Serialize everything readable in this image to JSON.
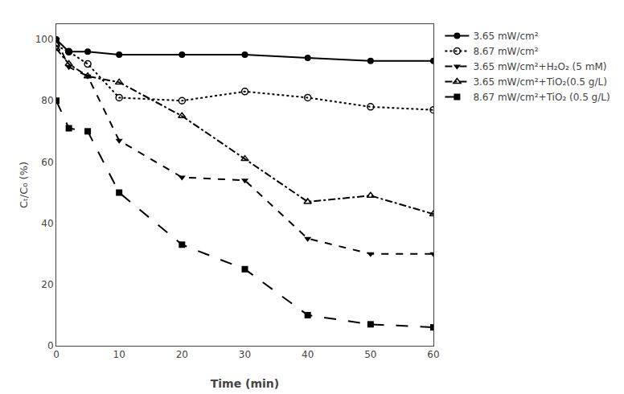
{
  "chart_data": {
    "type": "line",
    "x": [
      0,
      2,
      5,
      10,
      20,
      30,
      40,
      50,
      60
    ],
    "series": [
      {
        "name": "3.65 mW/cm²",
        "color": "#000000",
        "marker": "circle",
        "line_style": "solid",
        "values": [
          100,
          96,
          96,
          95,
          95,
          95,
          94,
          93,
          93
        ]
      },
      {
        "name": "8.67 mW/cm²",
        "color": "#000000",
        "marker": "circle-open",
        "line_style": "dot",
        "values": [
          98,
          96,
          92,
          81,
          80,
          83,
          81,
          78,
          77
        ]
      },
      {
        "name": "3.65 mW/cm²+H₂O₂ (5 mM)",
        "color": "#000000",
        "marker": "triangle-down",
        "line_style": "dash",
        "values": [
          100,
          91,
          88,
          67,
          55,
          54,
          35,
          30,
          30
        ]
      },
      {
        "name": "3.65 mW/cm²+TiO₂(0.5 g/L)",
        "color": "#000000",
        "marker": "triangle-up-open",
        "line_style": "dashdot",
        "values": [
          97,
          92,
          88,
          86,
          75,
          61,
          47,
          49,
          43
        ]
      },
      {
        "name": "8.67 mW/cm²+TiO₂ (0.5 g/L)",
        "color": "#000000",
        "marker": "square",
        "line_style": "longdash",
        "values": [
          80,
          71,
          70,
          50,
          33,
          25,
          10,
          7,
          6
        ]
      }
    ],
    "xlabel": "Time (min)",
    "ylabel": "Cₜ/C₀ (%)",
    "xlim": [
      0,
      60
    ],
    "ylim": [
      0,
      105
    ],
    "xticks": [
      0,
      10,
      20,
      30,
      40,
      50,
      60
    ],
    "yticks": [
      0,
      20,
      40,
      60,
      80,
      100
    ],
    "grid": false,
    "legend": "right"
  }
}
